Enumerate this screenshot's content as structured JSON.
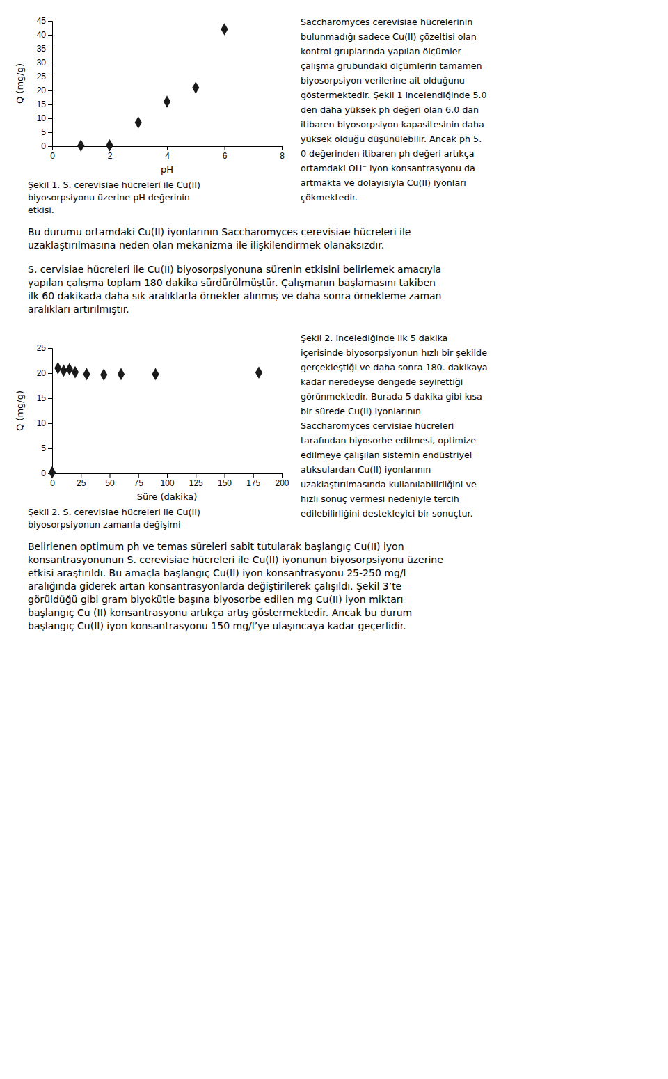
{
  "chart_data": [
    {
      "type": "scatter",
      "x": [
        1,
        2,
        3,
        4,
        5,
        6
      ],
      "values": [
        0.2,
        0.3,
        8.5,
        16,
        21,
        42
      ],
      "xlabel": "pH",
      "ylabel": "Q (mg/g)",
      "xlim": [
        0,
        8
      ],
      "ylim": [
        0,
        45
      ],
      "xticks": [
        0,
        2,
        4,
        6,
        8
      ],
      "yticks": [
        0,
        5,
        10,
        15,
        20,
        25,
        30,
        35,
        40,
        45
      ],
      "marker": "diamond",
      "color": "#1a1a1a",
      "annotations": [
        [
          "Şekil 1. S. cerevisiae hücreleri ile Cu(II)",
          "biyosorpsiyonu üzerine pH değerinin",
          "etkisi."
        ],
        [
          "Saccharomyces cerevisiae hücrelerinin",
          "bulunmadığı sadece Cu(II) çözeltisi olan",
          "kontrol gruplarında yapılan ölçümler",
          "çalışma grubundaki ölçümlerin tamamen",
          "biyosorpsiyon verilerine ait olduğunu",
          "göstermektedir. Şekil 1 incelendiğinde 5.0",
          "den daha yüksek ph değeri olan 6.0 dan",
          "itibaren biyosorpsiyon kapasitesinin daha",
          "yüksek olduğu düşünülebilir. Ancak ph 5.",
          "0 değerinden itibaren ph değeri artıkça",
          "ortamdaki OH⁻ iyon konsantrasyonu da",
          "artmakta ve dolayısıyla Cu(II) iyonları",
          "çökmektedir."
        ],
        [
          "Bu durumu ortamdaki Cu(II) iyonlarının Saccharomyces cerevisiae hücreleri ile",
          "uzaklaştırılmasına neden olan mekanizma ile ilişkilendirmek olanaksızdır."
        ],
        [
          "S. cervisiae hücreleri ile Cu(II) biyosorpsiyonuna sürenin etkisini belirlemek amacıyla",
          "yapılan çalışma toplam 180 dakika sürdürülmüştür. Çalışmanın başlamasını takiben",
          "ilk 60 dakikada daha sık aralıklarla örnekler alınmış ve daha sonra örnekleme zaman",
          "aralıkları artırılmıştır."
        ]
      ]
    },
    {
      "type": "scatter",
      "x": [
        0,
        5,
        10,
        15,
        20,
        30,
        45,
        60,
        90,
        180
      ],
      "values": [
        0.2,
        21,
        20.5,
        20.8,
        20.2,
        19.8,
        19.7,
        19.8,
        19.8,
        20.1
      ],
      "xlabel": "Süre (dakika)",
      "ylabel": "Q (mg/g)",
      "xlim": [
        0,
        200
      ],
      "ylim": [
        0,
        25
      ],
      "xticks": [
        0,
        25,
        50,
        75,
        100,
        125,
        150,
        175,
        200
      ],
      "yticks": [
        0,
        5,
        10,
        15,
        20,
        25
      ],
      "marker": "diamond",
      "color": "#1a1a1a",
      "annotations": [
        [
          "Şekil 2. S. cerevisiae hücreleri ile Cu(II)",
          "biyosorpsiyonun zamanla değişimi"
        ],
        [
          "Şekil 2. incelediğinde ilk 5 dakika",
          "içerisinde biyosorpsiyonun hızlı bir şekilde",
          "gerçekleştiği ve daha sonra 180. dakikaya",
          "kadar neredeyse dengede seyirettiği",
          "görünmektedir. Burada 5 dakika gibi kısa",
          "bir sürede Cu(II) iyonlarının",
          "Saccharomyces cervisiae hücreleri",
          "tarafından biyosorbe edilmesi, optimize",
          "edilmeye çalışılan sistemin endüstriyel",
          "atıksulardan Cu(II) iyonlarının",
          "uzaklaştırılmasında kullanılabilirliğini ve",
          "hızlı sonuç vermesi nedeniyle tercih",
          "edilebilirliğini destekleyici bir sonuçtur."
        ],
        [
          "Belirlenen optimum ph ve temas süreleri sabit tutularak başlangıç Cu(II) iyon",
          "konsantrasyonunun S. cerevisiae hücreleri ile Cu(II) iyonunun biyosorpsiyonu üzerine",
          "etkisi araştırıldı. Bu amaçla başlangıç Cu(II) iyon konsantrasyonu 25-250 mg/l",
          "aralığında giderek artan konsantrasyonlarda değiştirilerek çalışıldı. Şekil 3’te",
          "görüldüğü gibi gram biyokütle başına biyosorbe edilen mg Cu(II) iyon miktarı",
          "başlangıç Cu (II) konsantrasyonu artıkça artış göstermektedir. Ancak bu durum",
          "başlangıç Cu(II) iyon konsantrasyonu 150 mg/l’ye ulaşıncaya kadar geçerlidir."
        ]
      ]
    }
  ]
}
